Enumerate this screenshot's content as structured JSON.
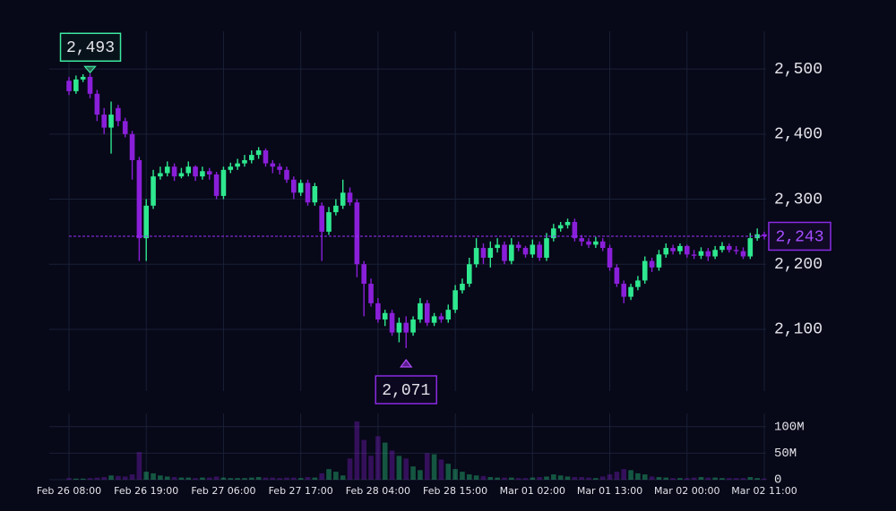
{
  "chart_data": {
    "type": "candlestick",
    "categories": [
      "Feb 26 08:00",
      null,
      null,
      null,
      null,
      null,
      null,
      null,
      null,
      null,
      null,
      "Feb 26 19:00",
      null,
      null,
      null,
      null,
      null,
      null,
      null,
      null,
      null,
      null,
      "Feb 27 06:00",
      null,
      null,
      null,
      null,
      null,
      null,
      null,
      null,
      null,
      null,
      "Feb 27 17:00",
      null,
      null,
      null,
      null,
      null,
      null,
      null,
      null,
      null,
      null,
      "Feb 28 04:00",
      null,
      null,
      null,
      null,
      null,
      null,
      null,
      null,
      null,
      null,
      "Feb 28 15:00",
      null,
      null,
      null,
      null,
      null,
      null,
      null,
      null,
      null,
      null,
      "Mar 01 02:00",
      null,
      null,
      null,
      null,
      null,
      null,
      null,
      null,
      null,
      null,
      "Mar 01 13:00",
      null,
      null,
      null,
      null,
      null,
      null,
      null,
      null,
      null,
      null,
      "Mar 02 00:00",
      null,
      null,
      null,
      null,
      null,
      null,
      null,
      null,
      null,
      null,
      "Mar 02 11:00"
    ],
    "open": [
      2482,
      2466,
      2484,
      2488,
      2462,
      2430,
      2410,
      2440,
      2420,
      2400,
      2360,
      2240,
      2290,
      2335,
      2340,
      2350,
      2335,
      2340,
      2350,
      2335,
      2343,
      2338,
      2305,
      2345,
      2350,
      2355,
      2360,
      2368,
      2375,
      2355,
      2350,
      2345,
      2330,
      2310,
      2325,
      2295,
      2290,
      2250,
      2280,
      2290,
      2310,
      2295,
      2200,
      2170,
      2140,
      2115,
      2125,
      2095,
      2110,
      2095,
      2115,
      2140,
      2110,
      2120,
      2115,
      2130,
      2160,
      2170,
      2200,
      2225,
      2210,
      2225,
      2230,
      2205,
      2230,
      2225,
      2215,
      2230,
      2210,
      2240,
      2255,
      2260,
      2265,
      2240,
      2235,
      2230,
      2235,
      2225,
      2195,
      2170,
      2150,
      2165,
      2175,
      2205,
      2195,
      2215,
      2225,
      2220,
      2228,
      2215,
      2213,
      2220,
      2212,
      2222,
      2228,
      2222,
      2220,
      2212,
      2240,
      2246
    ],
    "high": [
      2488,
      2490,
      2492,
      2493,
      2468,
      2440,
      2450,
      2445,
      2425,
      2405,
      2365,
      2300,
      2345,
      2350,
      2358,
      2355,
      2348,
      2358,
      2352,
      2350,
      2348,
      2342,
      2350,
      2356,
      2362,
      2368,
      2375,
      2380,
      2378,
      2360,
      2355,
      2350,
      2335,
      2330,
      2330,
      2325,
      2295,
      2288,
      2300,
      2330,
      2318,
      2300,
      2205,
      2178,
      2148,
      2130,
      2130,
      2118,
      2120,
      2120,
      2148,
      2145,
      2125,
      2125,
      2138,
      2168,
      2178,
      2210,
      2240,
      2232,
      2235,
      2240,
      2235,
      2240,
      2235,
      2228,
      2238,
      2235,
      2248,
      2262,
      2265,
      2270,
      2270,
      2245,
      2240,
      2242,
      2240,
      2230,
      2200,
      2175,
      2170,
      2182,
      2212,
      2210,
      2222,
      2232,
      2230,
      2232,
      2230,
      2222,
      2226,
      2225,
      2228,
      2234,
      2232,
      2228,
      2226,
      2248,
      2255,
      2250
    ],
    "low": [
      2460,
      2462,
      2480,
      2455,
      2420,
      2400,
      2370,
      2412,
      2395,
      2330,
      2205,
      2205,
      2285,
      2330,
      2335,
      2328,
      2332,
      2335,
      2328,
      2330,
      2330,
      2300,
      2300,
      2340,
      2345,
      2350,
      2355,
      2362,
      2350,
      2340,
      2338,
      2325,
      2300,
      2305,
      2290,
      2290,
      2205,
      2245,
      2275,
      2285,
      2290,
      2180,
      2120,
      2135,
      2110,
      2105,
      2090,
      2080,
      2071,
      2090,
      2110,
      2105,
      2105,
      2110,
      2110,
      2125,
      2155,
      2165,
      2195,
      2200,
      2195,
      2218,
      2200,
      2200,
      2220,
      2210,
      2210,
      2205,
      2205,
      2235,
      2250,
      2255,
      2235,
      2228,
      2225,
      2225,
      2220,
      2190,
      2165,
      2140,
      2145,
      2160,
      2170,
      2188,
      2190,
      2210,
      2215,
      2215,
      2210,
      2208,
      2208,
      2205,
      2208,
      2218,
      2218,
      2215,
      2208,
      2208,
      2236,
      2238
    ],
    "close": [
      2466,
      2484,
      2488,
      2462,
      2430,
      2410,
      2430,
      2420,
      2400,
      2360,
      2240,
      2290,
      2335,
      2340,
      2350,
      2335,
      2340,
      2350,
      2335,
      2343,
      2338,
      2305,
      2345,
      2350,
      2355,
      2360,
      2368,
      2375,
      2355,
      2350,
      2345,
      2330,
      2310,
      2325,
      2295,
      2320,
      2250,
      2280,
      2290,
      2310,
      2295,
      2200,
      2170,
      2140,
      2115,
      2125,
      2095,
      2110,
      2095,
      2115,
      2140,
      2110,
      2120,
      2115,
      2130,
      2160,
      2170,
      2200,
      2225,
      2210,
      2225,
      2230,
      2205,
      2230,
      2225,
      2215,
      2230,
      2210,
      2240,
      2255,
      2260,
      2265,
      2240,
      2235,
      2230,
      2235,
      2225,
      2195,
      2170,
      2150,
      2165,
      2175,
      2205,
      2195,
      2215,
      2225,
      2220,
      2228,
      2215,
      2213,
      2220,
      2212,
      2222,
      2228,
      2222,
      2220,
      2212,
      2240,
      2246,
      2243
    ],
    "up_color": "#2ee88f",
    "down_color": "#8a1fd9",
    "ylim": [
      2005,
      2558
    ],
    "yticks": [
      {
        "value": 2100,
        "label": "2,100"
      },
      {
        "value": 2200,
        "label": "2,200"
      },
      {
        "value": 2300,
        "label": "2,300"
      },
      {
        "value": 2400,
        "label": "2,400"
      },
      {
        "value": 2500,
        "label": "2,500"
      }
    ],
    "grid": true,
    "volume": {
      "values": [
        3000000,
        2000000,
        2000000,
        3000000,
        4000000,
        5000000,
        8000000,
        7000000,
        6000000,
        10000000,
        52000000,
        15000000,
        12000000,
        8000000,
        6000000,
        5000000,
        4000000,
        4000000,
        3000000,
        4000000,
        4000000,
        6000000,
        4000000,
        3000000,
        3000000,
        3000000,
        4000000,
        5000000,
        4000000,
        4000000,
        3000000,
        4000000,
        4000000,
        3000000,
        5000000,
        4000000,
        12000000,
        20000000,
        15000000,
        8000000,
        40000000,
        110000000,
        75000000,
        45000000,
        82000000,
        70000000,
        55000000,
        45000000,
        40000000,
        25000000,
        18000000,
        50000000,
        48000000,
        38000000,
        30000000,
        20000000,
        15000000,
        10000000,
        8000000,
        7000000,
        5000000,
        4000000,
        4000000,
        4000000,
        3000000,
        3000000,
        4000000,
        5000000,
        6000000,
        10000000,
        8000000,
        6000000,
        5000000,
        5000000,
        4000000,
        3000000,
        6000000,
        10000000,
        15000000,
        20000000,
        18000000,
        12000000,
        10000000,
        6000000,
        5000000,
        4000000,
        3000000,
        3000000,
        3000000,
        4000000,
        5000000,
        4000000,
        4000000,
        3000000,
        3000000,
        3000000,
        3000000,
        5000000,
        3000000,
        2000000
      ],
      "ylim": [
        0,
        125000000
      ],
      "yticks": [
        0,
        {
          "value": 50000000,
          "label": "50M"
        },
        {
          "value": 100000000,
          "label": "100M"
        }
      ]
    },
    "max_label": {
      "value": 2493,
      "label": "2,493"
    },
    "min_label": {
      "value": 2071,
      "label": "2,071"
    },
    "last_price": {
      "value": 2243,
      "label": "2,243"
    }
  }
}
